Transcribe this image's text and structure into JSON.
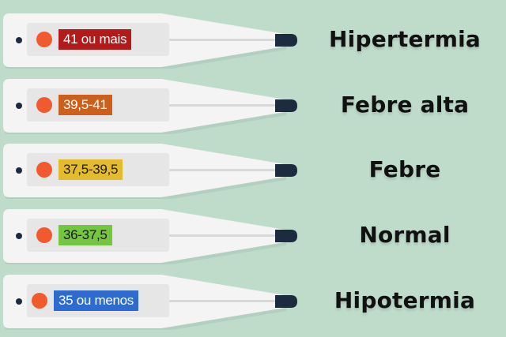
{
  "items": [
    {
      "range": "41 ou mais",
      "label": "Hipertermia",
      "color": "#b31a1a"
    },
    {
      "range": "39,5-41",
      "label": "Febre alta",
      "color": "#cc5f1c"
    },
    {
      "range": "37,5-39,5",
      "label": "Febre",
      "color": "#e3bb2c"
    },
    {
      "range": "36-37,5",
      "label": "Normal",
      "color": "#74c53f"
    },
    {
      "range": "35 ou menos",
      "label": "Hipotermia",
      "color": "#2e6bd0"
    }
  ],
  "colors": {
    "background": "#bfdccb",
    "thermometer_body": "#f2f2f2",
    "bulb_dot": "#f15a2e",
    "tip": "#1d2b3f"
  }
}
